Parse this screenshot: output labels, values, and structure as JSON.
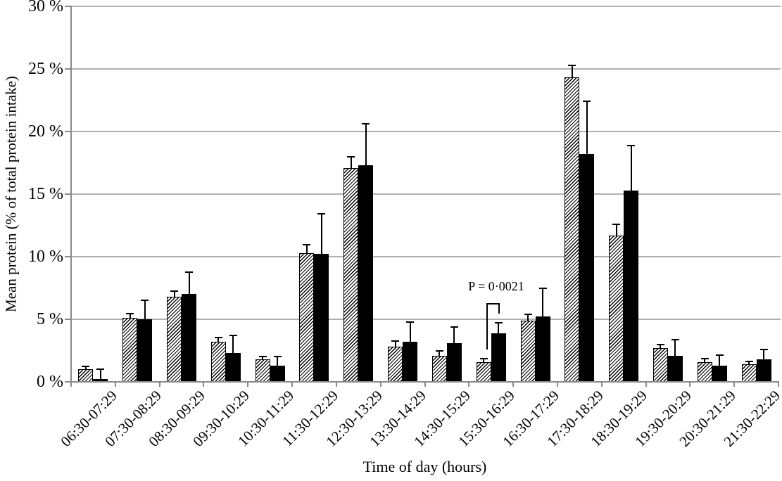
{
  "chart_data": {
    "type": "bar",
    "title": "",
    "xlabel": "Time of day (hours)",
    "ylabel": "Mean protein (% of total protein intake)",
    "ylim": [
      0,
      30
    ],
    "ytick_step": 5,
    "ytick_labels": [
      "0 %",
      "5 %",
      "10 %",
      "15 %",
      "20 %",
      "25 %",
      "30 %"
    ],
    "grid": true,
    "legend": "none",
    "categories": [
      "06:30-07:29",
      "07:30-08:29",
      "08:30-09:29",
      "09:30-10:29",
      "10:30-11:29",
      "11:30-12:29",
      "12:30-13:29",
      "13:30-14:29",
      "14:30-15:29",
      "15:30-16:29",
      "16:30-17:29",
      "17:30-18:29",
      "18:30-19:29",
      "19:30-20:29",
      "20:30-21:29",
      "21:30-22:29"
    ],
    "series": [
      {
        "name": "hatched-bars",
        "style": "diagonal-hatch",
        "values": [
          1.0,
          5.1,
          6.8,
          3.2,
          1.8,
          10.3,
          17.1,
          2.8,
          2.1,
          1.6,
          4.9,
          24.3,
          11.7,
          2.7,
          1.6,
          1.4
        ],
        "errors_upper": [
          0.25,
          0.35,
          0.45,
          0.35,
          0.25,
          0.65,
          0.85,
          0.45,
          0.4,
          0.25,
          0.5,
          1.0,
          0.9,
          0.3,
          0.25,
          0.25
        ]
      },
      {
        "name": "solid-black-bars",
        "style": "solid",
        "color": "#000000",
        "values": [
          0.2,
          5.0,
          7.0,
          2.3,
          1.3,
          10.2,
          17.3,
          3.2,
          3.1,
          3.9,
          5.2,
          18.2,
          15.3,
          2.1,
          1.3,
          1.8
        ],
        "errors_upper": [
          0.8,
          1.5,
          1.75,
          1.4,
          0.7,
          3.2,
          3.3,
          1.6,
          1.3,
          0.8,
          2.3,
          4.2,
          3.6,
          1.25,
          0.85,
          0.8
        ]
      }
    ],
    "annotation": {
      "text": "P = 0·0021",
      "category": "15:30-16:29",
      "bracket": true
    }
  },
  "colors": {
    "bar_solid": "#000000",
    "hatch_stripe": "#000000",
    "gridline": "#b0b0b0",
    "axis": "#8a8a8a",
    "text": "#000000"
  }
}
